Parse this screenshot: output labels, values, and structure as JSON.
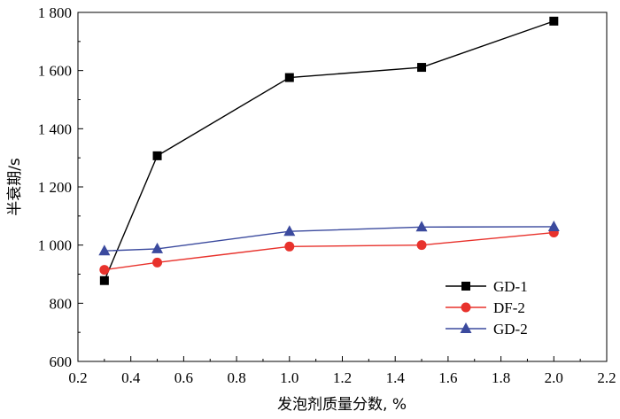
{
  "chart_data": {
    "type": "line",
    "title": "",
    "xlabel": "发泡剂质量分数, %",
    "ylabel": "半衰期/s",
    "xlim": [
      0.2,
      2.2
    ],
    "ylim": [
      600,
      1800
    ],
    "x_ticks": [
      0.2,
      0.4,
      0.6,
      0.8,
      1.0,
      1.2,
      1.4,
      1.6,
      1.8,
      2.0,
      2.2
    ],
    "x_tick_labels": [
      "0.2",
      "0.4",
      "0.6",
      "0.8",
      "1.0",
      "1.2",
      "1.4",
      "1.6",
      "1.8",
      "2.0",
      "2.2"
    ],
    "y_ticks": [
      600,
      800,
      1000,
      1200,
      1400,
      1600,
      1800
    ],
    "y_tick_labels": [
      "600",
      "800",
      "1 000",
      "1 200",
      "1 400",
      "1 600",
      "1 800"
    ],
    "grid": false,
    "legend_position": "bottom-right",
    "series": [
      {
        "name": "GD-1",
        "color": "#000000",
        "marker": "square",
        "x": [
          0.3,
          0.5,
          1.0,
          1.5,
          2.0
        ],
        "y": [
          878,
          1307,
          1576,
          1611,
          1770
        ]
      },
      {
        "name": "DF-2",
        "color": "#e8322c",
        "marker": "circle",
        "x": [
          0.3,
          0.5,
          1.0,
          1.5,
          2.0
        ],
        "y": [
          915,
          940,
          995,
          1000,
          1043
        ]
      },
      {
        "name": "GD-2",
        "color": "#3b4a9e",
        "marker": "triangle",
        "x": [
          0.3,
          0.5,
          1.0,
          1.5,
          2.0
        ],
        "y": [
          980,
          987,
          1047,
          1062,
          1063
        ]
      }
    ]
  }
}
